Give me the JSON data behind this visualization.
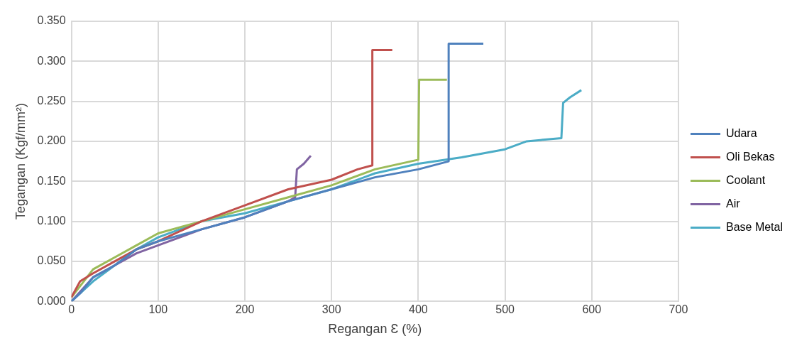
{
  "chart_data": {
    "type": "line",
    "xlabel": "Regangan Ɛ (%)",
    "ylabel": "Tegangan (Kgf/mm²)",
    "xlim": [
      0,
      700
    ],
    "xticks": [
      0,
      100,
      200,
      300,
      400,
      500,
      600,
      700
    ],
    "ylim": [
      0,
      0.35
    ],
    "yticks": [
      {
        "value": 0,
        "label": "0.000"
      },
      {
        "value": 0.05,
        "label": "0.050"
      },
      {
        "value": 0.1,
        "label": "0.100"
      },
      {
        "value": 0.15,
        "label": "0.150"
      },
      {
        "value": 0.2,
        "label": "0.200"
      },
      {
        "value": 0.25,
        "label": "0.250"
      },
      {
        "value": 0.3,
        "label": "0.300"
      },
      {
        "value": 0.35,
        "label": "0.350"
      }
    ],
    "grid": true,
    "legend": "right",
    "marker": "none",
    "series": [
      {
        "name": "Udara",
        "color": "#4f81bd",
        "x": [
          0,
          10,
          25,
          50,
          75,
          100,
          150,
          200,
          250,
          300,
          350,
          400,
          435,
          435,
          475
        ],
        "values": [
          0,
          0.01,
          0.03,
          0.045,
          0.065,
          0.075,
          0.09,
          0.105,
          0.125,
          0.14,
          0.155,
          0.165,
          0.175,
          0.322,
          0.322
        ]
      },
      {
        "name": "Oli Bekas",
        "color": "#c0504d",
        "x": [
          0,
          10,
          25,
          50,
          75,
          100,
          150,
          200,
          250,
          300,
          330,
          347,
          347,
          370
        ],
        "values": [
          0.005,
          0.025,
          0.035,
          0.05,
          0.065,
          0.075,
          0.1,
          0.12,
          0.14,
          0.152,
          0.165,
          0.17,
          0.314,
          0.314
        ]
      },
      {
        "name": "Coolant",
        "color": "#9bbb59",
        "x": [
          0,
          25,
          50,
          75,
          100,
          150,
          200,
          250,
          300,
          350,
          400,
          401,
          433
        ],
        "values": [
          0.005,
          0.04,
          0.055,
          0.07,
          0.085,
          0.1,
          0.115,
          0.13,
          0.145,
          0.165,
          0.177,
          0.277,
          0.277
        ]
      },
      {
        "name": "Air",
        "color": "#8064a2",
        "x": [
          0,
          25,
          50,
          75,
          100,
          150,
          200,
          250,
          258,
          260,
          268,
          276
        ],
        "values": [
          0,
          0.03,
          0.045,
          0.06,
          0.07,
          0.09,
          0.105,
          0.125,
          0.13,
          0.165,
          0.172,
          0.182
        ]
      },
      {
        "name": "Base Metal",
        "color": "#4bacc6",
        "x": [
          0,
          25,
          50,
          75,
          100,
          150,
          200,
          250,
          300,
          350,
          400,
          450,
          500,
          525,
          565,
          567,
          575,
          588
        ],
        "values": [
          0,
          0.025,
          0.045,
          0.065,
          0.08,
          0.1,
          0.11,
          0.125,
          0.14,
          0.16,
          0.172,
          0.18,
          0.19,
          0.2,
          0.204,
          0.248,
          0.255,
          0.264
        ]
      }
    ]
  }
}
